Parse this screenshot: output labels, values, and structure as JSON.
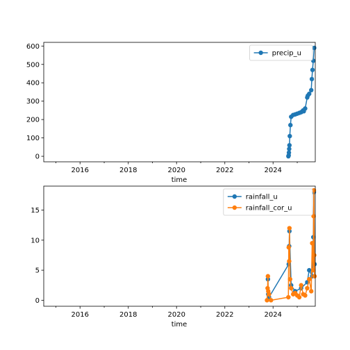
{
  "chart_data": [
    {
      "type": "line",
      "xlabel": "time",
      "ylabel": "",
      "xlim": [
        "2014-07-01",
        "2025-10-01"
      ],
      "ylim": [
        -30,
        620
      ],
      "x_ticks": [
        "2016",
        "2018",
        "2020",
        "2022",
        "2024"
      ],
      "y_ticks": [
        "0",
        "100",
        "200",
        "300",
        "400",
        "500",
        "600"
      ],
      "y_tick_values": [
        0,
        100,
        200,
        300,
        400,
        500,
        600
      ],
      "legend_position": "top-right",
      "series": [
        {
          "name": "precip_u",
          "color": "#1f77b4",
          "marker": "circle",
          "x": [
            "2024-08-20",
            "2024-08-25",
            "2024-08-28",
            "2024-09-01",
            "2024-09-05",
            "2024-09-10",
            "2024-09-20",
            "2024-10-01",
            "2024-11-01",
            "2024-12-01",
            "2025-01-01",
            "2025-02-01",
            "2025-03-01",
            "2025-03-20",
            "2025-04-01",
            "2025-04-10",
            "2025-05-01",
            "2025-06-01",
            "2025-06-10",
            "2025-07-01",
            "2025-08-01",
            "2025-08-10",
            "2025-08-20",
            "2025-09-01",
            "2025-09-15"
          ],
          "values": [
            0,
            5,
            20,
            40,
            60,
            110,
            170,
            215,
            225,
            228,
            232,
            236,
            240,
            245,
            250,
            245,
            260,
            320,
            330,
            340,
            360,
            420,
            470,
            520,
            590
          ]
        }
      ]
    },
    {
      "type": "line",
      "xlabel": "time",
      "ylabel": "",
      "xlim": [
        "2014-07-01",
        "2025-10-01"
      ],
      "ylim": [
        -1,
        19
      ],
      "x_ticks": [
        "2016",
        "2018",
        "2020",
        "2022",
        "2024"
      ],
      "y_ticks": [
        "0",
        "5",
        "10",
        "15"
      ],
      "y_tick_values": [
        0,
        5,
        10,
        15
      ],
      "legend_position": "top-right",
      "series": [
        {
          "name": "rainfall_u",
          "color": "#1f77b4",
          "marker": "circle",
          "x": [
            "2023-10-15",
            "2023-10-20",
            "2023-11-01",
            "2024-08-25",
            "2024-09-01",
            "2024-09-05",
            "2024-10-01",
            "2024-12-01",
            "2025-03-01",
            "2025-06-01",
            "2025-07-01",
            "2025-08-15",
            "2025-09-01",
            "2025-09-10",
            "2025-09-20"
          ],
          "values": [
            3.5,
            1.0,
            0.5,
            6.0,
            9.0,
            11.5,
            2.5,
            1.5,
            2.0,
            3.0,
            5.0,
            4.0,
            10.5,
            18.0,
            6.0
          ]
        },
        {
          "name": "rainfall_cor_u",
          "color": "#ff7f0e",
          "marker": "circle",
          "x": [
            "2023-10-01",
            "2023-10-10",
            "2023-10-15",
            "2023-10-20",
            "2023-11-01",
            "2023-12-01",
            "2024-08-20",
            "2024-08-25",
            "2024-09-01",
            "2024-09-05",
            "2024-09-15",
            "2024-10-01",
            "2024-11-01",
            "2024-12-01",
            "2025-01-01",
            "2025-02-01",
            "2025-03-01",
            "2025-04-01",
            "2025-05-01",
            "2025-06-01",
            "2025-07-01",
            "2025-08-01",
            "2025-08-15",
            "2025-09-01",
            "2025-09-05",
            "2025-09-10",
            "2025-09-15",
            "2025-09-20"
          ],
          "values": [
            0,
            2.0,
            4.0,
            1.5,
            1.0,
            0,
            0.5,
            8.8,
            6.5,
            12.0,
            3.5,
            2.0,
            1.0,
            1.2,
            0.8,
            0.5,
            2.5,
            1.0,
            0.8,
            2.0,
            3.5,
            1.5,
            9.5,
            5.0,
            14.0,
            18.3,
            7.5,
            4.0
          ]
        }
      ]
    }
  ]
}
